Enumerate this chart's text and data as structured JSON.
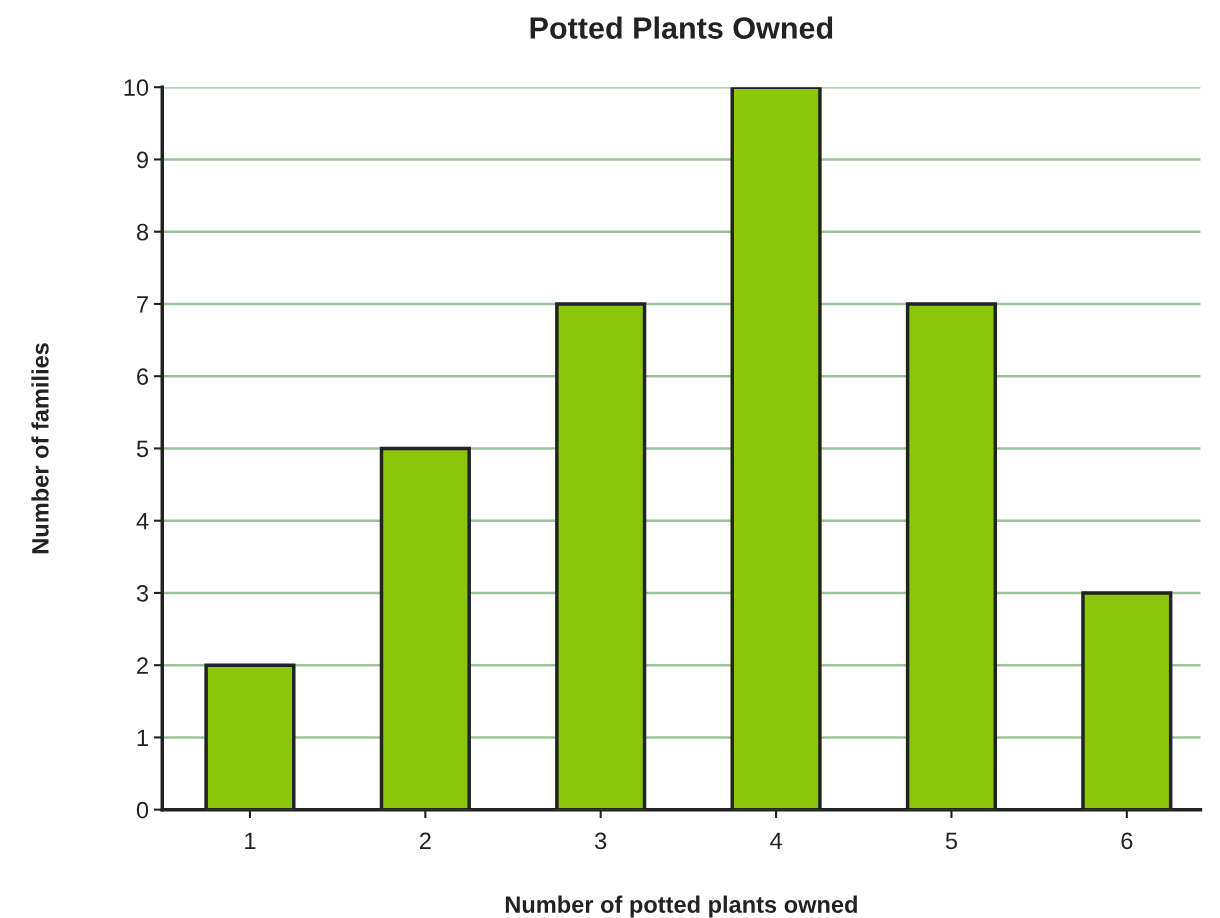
{
  "chart_data": {
    "type": "bar",
    "title": "Potted Plants Owned",
    "xlabel": "Number of potted plants owned",
    "ylabel": "Number of families",
    "categories": [
      "1",
      "2",
      "3",
      "4",
      "5",
      "6"
    ],
    "values": [
      2,
      5,
      7,
      10,
      7,
      3
    ],
    "color": "#8cc60a",
    "ylim": [
      0,
      10
    ],
    "yticks": [
      0,
      1,
      2,
      3,
      4,
      5,
      6,
      7,
      8,
      9,
      10
    ],
    "grid": "y"
  }
}
